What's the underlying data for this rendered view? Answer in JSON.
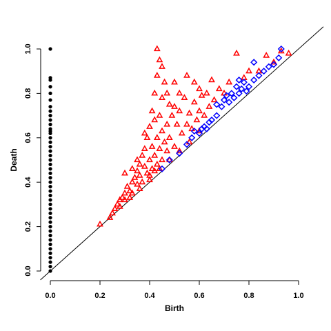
{
  "chart_data": {
    "type": "scatter",
    "xlabel": "Birth",
    "ylabel": "Death",
    "xlim": [
      0.0,
      1.0
    ],
    "ylim": [
      0.0,
      1.0
    ],
    "xticks": [
      "0.0",
      "0.2",
      "0.4",
      "0.6",
      "0.8",
      "1.0"
    ],
    "yticks": [
      "0.0",
      "0.2",
      "0.4",
      "0.6",
      "0.8",
      "1.0"
    ],
    "diagonal": true,
    "grid": false,
    "series": [
      {
        "marker": "circle",
        "color": "#000000",
        "points": [
          [
            0.0,
            1.0
          ],
          [
            0.0,
            0.87
          ],
          [
            0.0,
            0.86
          ],
          [
            0.0,
            0.83
          ],
          [
            0.0,
            0.8
          ],
          [
            0.0,
            0.77
          ],
          [
            0.0,
            0.74
          ],
          [
            0.0,
            0.72
          ],
          [
            0.0,
            0.7
          ],
          [
            0.0,
            0.68
          ],
          [
            0.0,
            0.66
          ],
          [
            0.0,
            0.64
          ],
          [
            0.0,
            0.63
          ],
          [
            0.0,
            0.62
          ],
          [
            0.0,
            0.6
          ],
          [
            0.0,
            0.58
          ],
          [
            0.0,
            0.56
          ],
          [
            0.0,
            0.54
          ],
          [
            0.0,
            0.52
          ],
          [
            0.0,
            0.5
          ],
          [
            0.0,
            0.48
          ],
          [
            0.0,
            0.46
          ],
          [
            0.0,
            0.44
          ],
          [
            0.0,
            0.42
          ],
          [
            0.0,
            0.4
          ],
          [
            0.0,
            0.38
          ],
          [
            0.0,
            0.36
          ],
          [
            0.0,
            0.34
          ],
          [
            0.0,
            0.32
          ],
          [
            0.0,
            0.3
          ],
          [
            0.0,
            0.28
          ],
          [
            0.0,
            0.26
          ],
          [
            0.0,
            0.24
          ],
          [
            0.0,
            0.22
          ],
          [
            0.0,
            0.2
          ],
          [
            0.0,
            0.18
          ],
          [
            0.0,
            0.16
          ],
          [
            0.0,
            0.14
          ],
          [
            0.0,
            0.12
          ],
          [
            0.0,
            0.1
          ],
          [
            0.0,
            0.08
          ],
          [
            0.0,
            0.06
          ],
          [
            0.0,
            0.04
          ],
          [
            0.0,
            0.02
          ],
          [
            0.0,
            0.0
          ]
        ]
      },
      {
        "marker": "triangle",
        "color": "#ff0000",
        "points": [
          [
            0.2,
            0.21
          ],
          [
            0.25,
            0.26
          ],
          [
            0.26,
            0.28
          ],
          [
            0.27,
            0.3
          ],
          [
            0.28,
            0.32
          ],
          [
            0.29,
            0.33
          ],
          [
            0.3,
            0.35
          ],
          [
            0.3,
            0.32
          ],
          [
            0.31,
            0.38
          ],
          [
            0.32,
            0.36
          ],
          [
            0.33,
            0.4
          ],
          [
            0.33,
            0.35
          ],
          [
            0.34,
            0.42
          ],
          [
            0.35,
            0.45
          ],
          [
            0.35,
            0.39
          ],
          [
            0.36,
            0.48
          ],
          [
            0.36,
            0.43
          ],
          [
            0.37,
            0.52
          ],
          [
            0.37,
            0.4
          ],
          [
            0.38,
            0.55
          ],
          [
            0.38,
            0.47
          ],
          [
            0.39,
            0.6
          ],
          [
            0.39,
            0.44
          ],
          [
            0.4,
            0.65
          ],
          [
            0.4,
            0.5
          ],
          [
            0.4,
            0.43
          ],
          [
            0.41,
            0.72
          ],
          [
            0.41,
            0.56
          ],
          [
            0.41,
            0.46
          ],
          [
            0.42,
            0.8
          ],
          [
            0.42,
            0.68
          ],
          [
            0.42,
            0.52
          ],
          [
            0.42,
            0.45
          ],
          [
            0.43,
            1.0
          ],
          [
            0.43,
            0.88
          ],
          [
            0.43,
            0.6
          ],
          [
            0.43,
            0.48
          ],
          [
            0.44,
            0.95
          ],
          [
            0.44,
            0.7
          ],
          [
            0.44,
            0.55
          ],
          [
            0.45,
            0.92
          ],
          [
            0.45,
            0.63
          ],
          [
            0.45,
            0.5
          ],
          [
            0.46,
            0.85
          ],
          [
            0.46,
            0.58
          ],
          [
            0.47,
            0.8
          ],
          [
            0.47,
            0.54
          ],
          [
            0.48,
            0.75
          ],
          [
            0.48,
            0.6
          ],
          [
            0.49,
            0.7
          ],
          [
            0.5,
            0.74
          ],
          [
            0.5,
            0.56
          ],
          [
            0.51,
            0.66
          ],
          [
            0.52,
            0.72
          ],
          [
            0.53,
            0.62
          ],
          [
            0.54,
            0.78
          ],
          [
            0.55,
            0.66
          ],
          [
            0.56,
            0.71
          ],
          [
            0.57,
            0.64
          ],
          [
            0.58,
            0.76
          ],
          [
            0.59,
            0.68
          ],
          [
            0.6,
            0.72
          ],
          [
            0.61,
            0.79
          ],
          [
            0.62,
            0.7
          ],
          [
            0.63,
            0.8
          ],
          [
            0.64,
            0.74
          ],
          [
            0.66,
            0.77
          ],
          [
            0.68,
            0.82
          ],
          [
            0.7,
            0.8
          ],
          [
            0.72,
            0.85
          ],
          [
            0.75,
            0.98
          ],
          [
            0.78,
            0.87
          ],
          [
            0.8,
            0.9
          ],
          [
            0.84,
            0.9
          ],
          [
            0.87,
            0.97
          ],
          [
            0.9,
            0.94
          ],
          [
            0.93,
            0.99
          ],
          [
            0.96,
            0.98
          ],
          [
            0.24,
            0.24
          ],
          [
            0.28,
            0.29
          ],
          [
            0.32,
            0.33
          ],
          [
            0.36,
            0.37
          ],
          [
            0.4,
            0.41
          ],
          [
            0.44,
            0.46
          ],
          [
            0.48,
            0.5
          ],
          [
            0.52,
            0.54
          ],
          [
            0.56,
            0.58
          ],
          [
            0.6,
            0.63
          ],
          [
            0.35,
            0.5
          ],
          [
            0.3,
            0.44
          ],
          [
            0.45,
            0.78
          ],
          [
            0.5,
            0.85
          ],
          [
            0.55,
            0.88
          ],
          [
            0.6,
            0.82
          ],
          [
            0.38,
            0.62
          ],
          [
            0.33,
            0.46
          ],
          [
            0.47,
            0.66
          ],
          [
            0.52,
            0.8
          ],
          [
            0.58,
            0.85
          ],
          [
            0.65,
            0.86
          ]
        ]
      },
      {
        "marker": "diamond",
        "color": "#0000ff",
        "points": [
          [
            0.45,
            0.46
          ],
          [
            0.48,
            0.5
          ],
          [
            0.52,
            0.53
          ],
          [
            0.55,
            0.57
          ],
          [
            0.57,
            0.6
          ],
          [
            0.58,
            0.63
          ],
          [
            0.6,
            0.62
          ],
          [
            0.62,
            0.65
          ],
          [
            0.63,
            0.64
          ],
          [
            0.65,
            0.68
          ],
          [
            0.67,
            0.7
          ],
          [
            0.69,
            0.74
          ],
          [
            0.7,
            0.77
          ],
          [
            0.72,
            0.76
          ],
          [
            0.73,
            0.8
          ],
          [
            0.74,
            0.78
          ],
          [
            0.75,
            0.83
          ],
          [
            0.76,
            0.8
          ],
          [
            0.77,
            0.82
          ],
          [
            0.78,
            0.85
          ],
          [
            0.8,
            0.83
          ],
          [
            0.82,
            0.86
          ],
          [
            0.84,
            0.88
          ],
          [
            0.86,
            0.9
          ],
          [
            0.88,
            0.92
          ],
          [
            0.9,
            0.93
          ],
          [
            0.92,
            0.96
          ],
          [
            0.93,
            1.0
          ],
          [
            0.82,
            0.94
          ],
          [
            0.67,
            0.75
          ],
          [
            0.71,
            0.79
          ],
          [
            0.76,
            0.86
          ],
          [
            0.79,
            0.81
          ],
          [
            0.64,
            0.67
          ],
          [
            0.61,
            0.64
          ]
        ]
      }
    ]
  }
}
